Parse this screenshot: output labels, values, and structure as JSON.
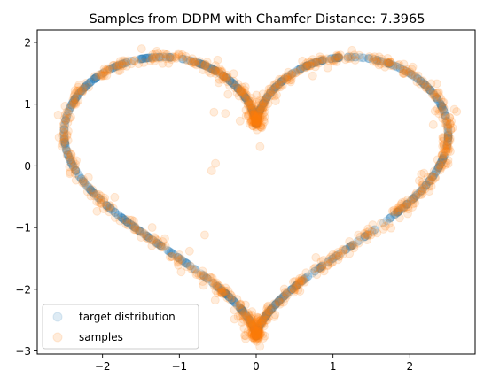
{
  "chart_data": {
    "type": "scatter",
    "title": "Samples from DDPM with Chamfer Distance: 7.3965",
    "xlabel": "",
    "ylabel": "",
    "xlim": [
      -2.85,
      2.85
    ],
    "ylim": [
      -3.05,
      2.2
    ],
    "xticks": [
      -2,
      -1,
      0,
      1,
      2
    ],
    "xtick_labels": [
      "−2",
      "−1",
      "0",
      "1",
      "2"
    ],
    "yticks": [
      -3,
      -2,
      -1,
      0,
      1,
      2
    ],
    "ytick_labels": [
      "−3",
      "−2",
      "−1",
      "0",
      "1",
      "2"
    ],
    "grid": false,
    "legend_position": "lower-left",
    "series": [
      {
        "name": "target distribution",
        "color": "#1f77b4",
        "alpha": 0.15,
        "shape": "heart curve x = 16 sin^3(t) / 6.4, y = (13 cos t - 5 cos 2t - 2 cos 3t - cos 4t) / 6.4 - 0.1, t in [0, 2π)",
        "point_count": 1000
      },
      {
        "name": "samples",
        "color": "#ff7f0e",
        "alpha": 0.15,
        "shape": "same heart curve with small noise",
        "point_count": 1000,
        "outliers": [
          {
            "x": -0.55,
            "y": 0.87
          },
          {
            "x": -0.4,
            "y": 0.85
          },
          {
            "x": 0.05,
            "y": 0.31
          },
          {
            "x": -0.53,
            "y": 0.04
          },
          {
            "x": -0.58,
            "y": -0.08
          },
          {
            "x": -0.67,
            "y": -1.12
          }
        ]
      }
    ]
  }
}
